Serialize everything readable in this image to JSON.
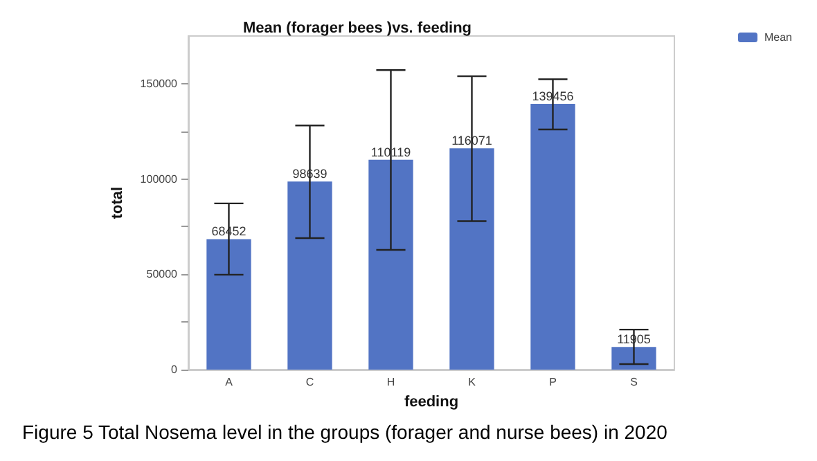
{
  "chart_data": {
    "type": "bar",
    "title": "Mean (forager bees )vs. feeding",
    "xlabel": "feeding",
    "ylabel": "total",
    "categories": [
      "A",
      "C",
      "H",
      "K",
      "P",
      "S"
    ],
    "series": [
      {
        "name": "Mean",
        "color": "#5274c4",
        "values": [
          68452,
          98639,
          110119,
          116071,
          139456,
          11905
        ],
        "errors": [
          [
            49800,
            87200
          ],
          [
            69000,
            128100
          ],
          [
            62800,
            157100
          ],
          [
            77900,
            153900
          ],
          [
            126000,
            152300
          ],
          [
            2900,
            21000
          ]
        ]
      }
    ],
    "data_labels": true,
    "ylim": [
      0,
      175000
    ],
    "yticks": [
      0,
      {
        "value": 25000,
        "label": null
      },
      50000,
      {
        "value": 75000,
        "label": null
      },
      100000,
      {
        "value": 125000,
        "label": null
      },
      150000
    ],
    "grid": false,
    "legend": "top right",
    "annotations": [
      "Figure 5 Total Nosema level in the groups (forager and nurse bees) in 2020"
    ]
  }
}
